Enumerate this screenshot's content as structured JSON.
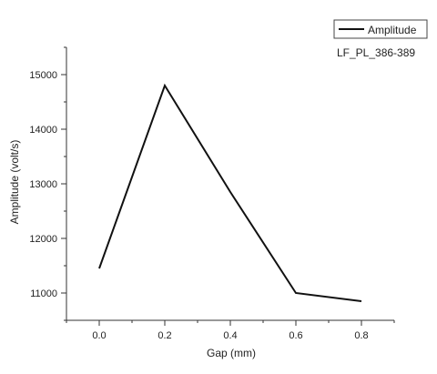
{
  "chart_data": {
    "type": "line",
    "title": "",
    "xlabel": "Gap (mm)",
    "ylabel": "Amplitude (volt/s)",
    "annotation": "LF_PL_386-389",
    "xlim": [
      -0.1,
      0.9
    ],
    "ylim": [
      10500,
      15500
    ],
    "x_ticks": [
      0.0,
      0.2,
      0.4,
      0.6,
      0.8
    ],
    "x_tick_labels": [
      "0.0",
      "0.2",
      "0.4",
      "0.6",
      "0.8"
    ],
    "y_ticks": [
      11000,
      12000,
      13000,
      14000,
      15000
    ],
    "y_tick_labels": [
      "11000",
      "12000",
      "13000",
      "14000",
      "15000"
    ],
    "grid": false,
    "legend": {
      "position": "top-right"
    },
    "line_color": "#111111",
    "series": [
      {
        "name": "Amplitude",
        "x": [
          0.0,
          0.2,
          0.4,
          0.6,
          0.8
        ],
        "values": [
          11450,
          14800,
          12850,
          11000,
          10850
        ]
      }
    ]
  }
}
